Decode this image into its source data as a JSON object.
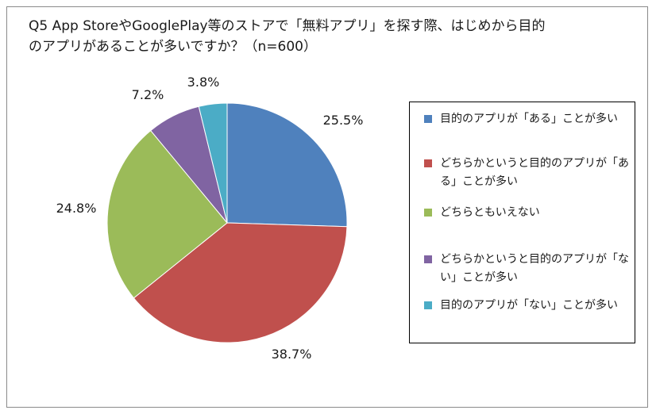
{
  "chart_data": {
    "type": "pie",
    "title_lines": [
      "Q5 App StoreやGooglePlay等のストアで「無料アプリ」を探す際、はじめから目的",
      "のアプリがあることが多いですか？（n=600）"
    ],
    "slices": [
      {
        "label": "目的のアプリが「ある」ことが多い",
        "value": 25.5,
        "display": "25.5%",
        "color": "#4F81BD"
      },
      {
        "label": "どちらかというと目的のアプリが「ある」ことが多い",
        "value": 38.7,
        "display": "38.7%",
        "color": "#C0504D"
      },
      {
        "label": "どちらともいえない",
        "value": 24.8,
        "display": "24.8%",
        "color": "#9BBB59"
      },
      {
        "label": "どちらかというと目的のアプリが「ない」ことが多い",
        "value": 7.2,
        "display": "7.2%",
        "color": "#8064A2"
      },
      {
        "label": "目的のアプリが「ない」ことが多い",
        "value": 3.8,
        "display": "3.8%",
        "color": "#4BACC6"
      }
    ],
    "start_angle": "12 o'clock",
    "direction": "clockwise",
    "legend_position": "right"
  }
}
